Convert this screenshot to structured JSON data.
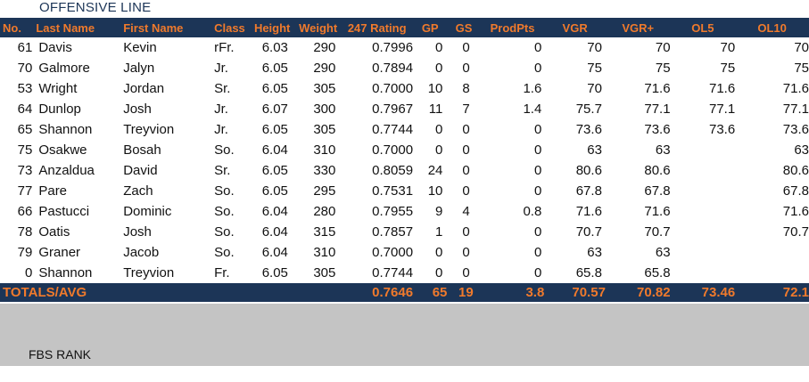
{
  "title": "OFFENSIVE LINE",
  "columns": [
    "No.",
    "Last Name",
    "First Name",
    "Class",
    "Height",
    "Weight",
    "247 Rating",
    "GP",
    "GS",
    "ProdPts",
    "VGR",
    "VGR+",
    "OL5",
    "OL10"
  ],
  "rows": [
    [
      "61",
      "Davis",
      "Kevin",
      "rFr.",
      "6.03",
      "290",
      "0.7996",
      "0",
      "0",
      "0",
      "70",
      "70",
      "70",
      "70"
    ],
    [
      "70",
      "Galmore",
      "Jalyn",
      "Jr.",
      "6.05",
      "290",
      "0.7894",
      "0",
      "0",
      "0",
      "75",
      "75",
      "75",
      "75"
    ],
    [
      "53",
      "Wright",
      "Jordan",
      "Sr.",
      "6.05",
      "305",
      "0.7000",
      "10",
      "8",
      "1.6",
      "70",
      "71.6",
      "71.6",
      "71.6"
    ],
    [
      "64",
      "Dunlop",
      "Josh",
      "Jr.",
      "6.07",
      "300",
      "0.7967",
      "11",
      "7",
      "1.4",
      "75.7",
      "77.1",
      "77.1",
      "77.1"
    ],
    [
      "65",
      "Shannon",
      "Treyvion",
      "Jr.",
      "6.05",
      "305",
      "0.7744",
      "0",
      "0",
      "0",
      "73.6",
      "73.6",
      "73.6",
      "73.6"
    ],
    [
      "75",
      "Osakwe",
      "Bosah",
      "So.",
      "6.04",
      "310",
      "0.7000",
      "0",
      "0",
      "0",
      "63",
      "63",
      "",
      "63"
    ],
    [
      "73",
      "Anzaldua",
      "David",
      "Sr.",
      "6.05",
      "330",
      "0.8059",
      "24",
      "0",
      "0",
      "80.6",
      "80.6",
      "",
      "80.6"
    ],
    [
      "77",
      "Pare",
      "Zach",
      "So.",
      "6.05",
      "295",
      "0.7531",
      "10",
      "0",
      "0",
      "67.8",
      "67.8",
      "",
      "67.8"
    ],
    [
      "66",
      "Pastucci",
      "Dominic",
      "So.",
      "6.04",
      "280",
      "0.7955",
      "9",
      "4",
      "0.8",
      "71.6",
      "71.6",
      "",
      "71.6"
    ],
    [
      "78",
      "Oatis",
      "Josh",
      "So.",
      "6.04",
      "315",
      "0.7857",
      "1",
      "0",
      "0",
      "70.7",
      "70.7",
      "",
      "70.7"
    ],
    [
      "79",
      "Graner",
      "Jacob",
      "So.",
      "6.04",
      "310",
      "0.7000",
      "0",
      "0",
      "0",
      "63",
      "63",
      "",
      ""
    ],
    [
      "0",
      "Shannon",
      "Treyvion",
      "Fr.",
      "6.05",
      "305",
      "0.7744",
      "0",
      "0",
      "0",
      "65.8",
      "65.8",
      "",
      ""
    ]
  ],
  "totals": {
    "label": "TOTALS/AVG",
    "rating": "0.7646",
    "gp": "65",
    "gs": "19",
    "prodpts": "3.8",
    "vgr": "70.57",
    "vgr_plus": "70.82",
    "ol5": "73.46",
    "ol10": "72.1"
  },
  "fbs_rank_label": "FBS RANK",
  "colors": {
    "navy": "#1c3557",
    "orange": "#f07a2c",
    "grey": "#c4c4c4"
  }
}
